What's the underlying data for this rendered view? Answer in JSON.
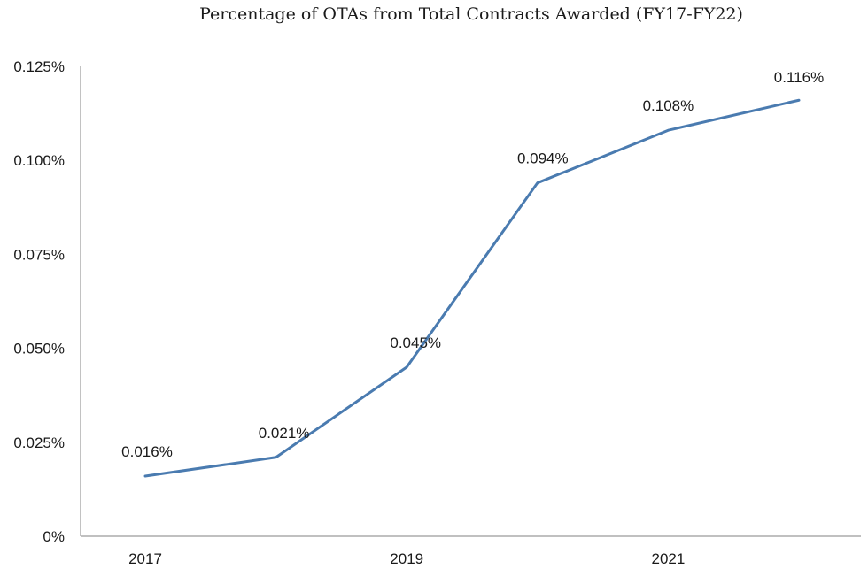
{
  "chart_data": {
    "type": "line",
    "title": "Percentage of OTAs from Total Contracts Awarded (FY17-FY22)",
    "xlabel": "",
    "ylabel": "",
    "x": [
      2017,
      2018,
      2019,
      2020,
      2021,
      2022
    ],
    "x_tick_labels": [
      "2017",
      "2019",
      "2021"
    ],
    "ylim": [
      0,
      0.125
    ],
    "y_ticks": [
      0,
      0.025,
      0.05,
      0.075,
      0.1,
      0.125
    ],
    "y_tick_labels": [
      "0%",
      "0.025%",
      "0.050%",
      "0.075%",
      "0.100%",
      "0.125%"
    ],
    "grid": false,
    "legend": "none",
    "series": [
      {
        "values": [
          0.016,
          0.021,
          0.045,
          0.094,
          0.108,
          0.116
        ],
        "labels": [
          "0.016%",
          "0.021%",
          "0.045%",
          "0.094%",
          "0.108%",
          "0.116%"
        ],
        "color": "#4a7bb0"
      }
    ]
  }
}
